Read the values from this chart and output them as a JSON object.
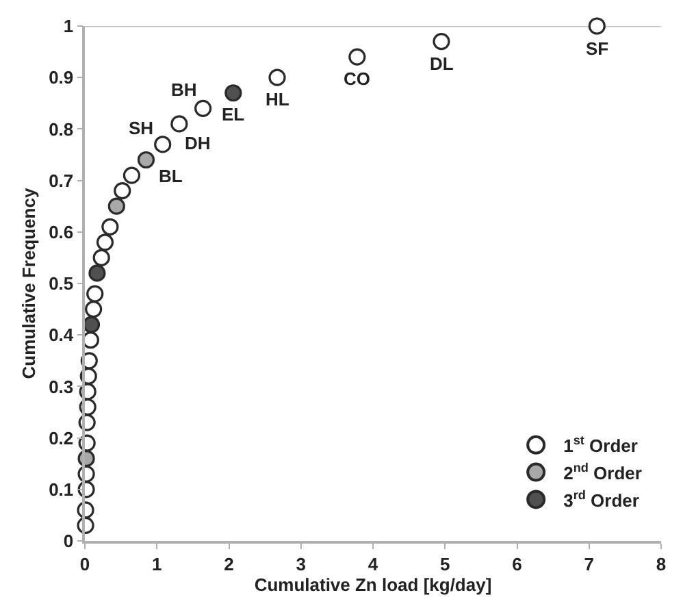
{
  "chart_data": {
    "type": "scatter",
    "xlabel": "Cumulative Zn load [kg/day]",
    "ylabel": "Cumulative Frequency",
    "xlim": [
      0,
      8
    ],
    "ylim": [
      0,
      1
    ],
    "xticks": [
      0,
      1,
      2,
      3,
      4,
      5,
      6,
      7,
      8
    ],
    "yticks": [
      0,
      0.1,
      0.2,
      0.3,
      0.4,
      0.5,
      0.6,
      0.7,
      0.8,
      0.9,
      1
    ],
    "grid": false,
    "legend": "bottom right",
    "marker": "circle",
    "ref_lines": [
      {
        "axis": "y",
        "value": 1,
        "color": "#c0c0c0"
      }
    ],
    "series": [
      {
        "name": "1$^{st}$ Order",
        "color": "#ffffff",
        "x": [
          0.01,
          0.01,
          0.02,
          0.02,
          0.03,
          0.03,
          0.04,
          0.04,
          0.05,
          0.06,
          0.08,
          0.12,
          0.14,
          0.23,
          0.28,
          0.35,
          0.52,
          0.65,
          1.08,
          1.31,
          1.64,
          2.67,
          3.78,
          4.95,
          7.11
        ],
        "values": [
          0.03,
          0.06,
          0.1,
          0.13,
          0.19,
          0.23,
          0.26,
          0.29,
          0.32,
          0.35,
          0.39,
          0.45,
          0.48,
          0.55,
          0.58,
          0.61,
          0.68,
          0.71,
          0.77,
          0.81,
          0.84,
          0.9,
          0.94,
          0.97,
          1
        ]
      },
      {
        "name": "2$^{nd}$ Order",
        "color": "#a8a8a8",
        "x": [
          0.02,
          0.44,
          0.85
        ],
        "values": [
          0.16,
          0.65,
          0.74
        ]
      },
      {
        "name": "3$^{rd}$ Order",
        "color": "#505050",
        "x": [
          0.09,
          0.17,
          2.06
        ],
        "values": [
          0.42,
          0.52,
          0.87
        ]
      }
    ],
    "annotations": [
      {
        "text": "SF",
        "x": 7.11,
        "y": 1
      },
      {
        "text": "DL",
        "x": 4.95,
        "y": 0.97
      },
      {
        "text": "CO",
        "x": 3.78,
        "y": 0.94
      },
      {
        "text": "HL",
        "x": 2.67,
        "y": 0.9
      },
      {
        "text": "EL",
        "x": 2.06,
        "y": 0.87
      },
      {
        "text": "BH",
        "x": 1.64,
        "y": 0.84
      },
      {
        "text": "DH",
        "x": 1.31,
        "y": 0.81
      },
      {
        "text": "SH",
        "x": 1.08,
        "y": 0.77
      },
      {
        "text": "BL",
        "x": 0.85,
        "y": 0.74
      }
    ]
  }
}
